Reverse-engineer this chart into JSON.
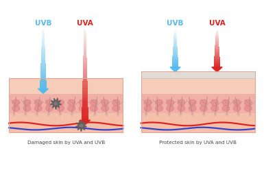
{
  "bg_color": "#ffffff",
  "title_left": "Damaged skin by UVA and UVB",
  "title_right": "Protected skin by UVA and UVB",
  "uvb_color": "#55bbee",
  "uva_color": "#dd2222",
  "uvb_label": "UVB",
  "uva_label": "UVA",
  "skin_top_color": "#f5cdb8",
  "skin_cell_color": "#f0b0a8",
  "skin_cell_dot_color": "#e89090",
  "skin_deep_color": "#f5c0aa",
  "sunscreen_color": "#e0dbd5",
  "blood_red_color": "#dd2222",
  "blood_blue_color": "#3344cc",
  "hair_color": "#aa8888",
  "damage_color": "#606060",
  "text_color": "#444444",
  "border_color": "#e0a898"
}
